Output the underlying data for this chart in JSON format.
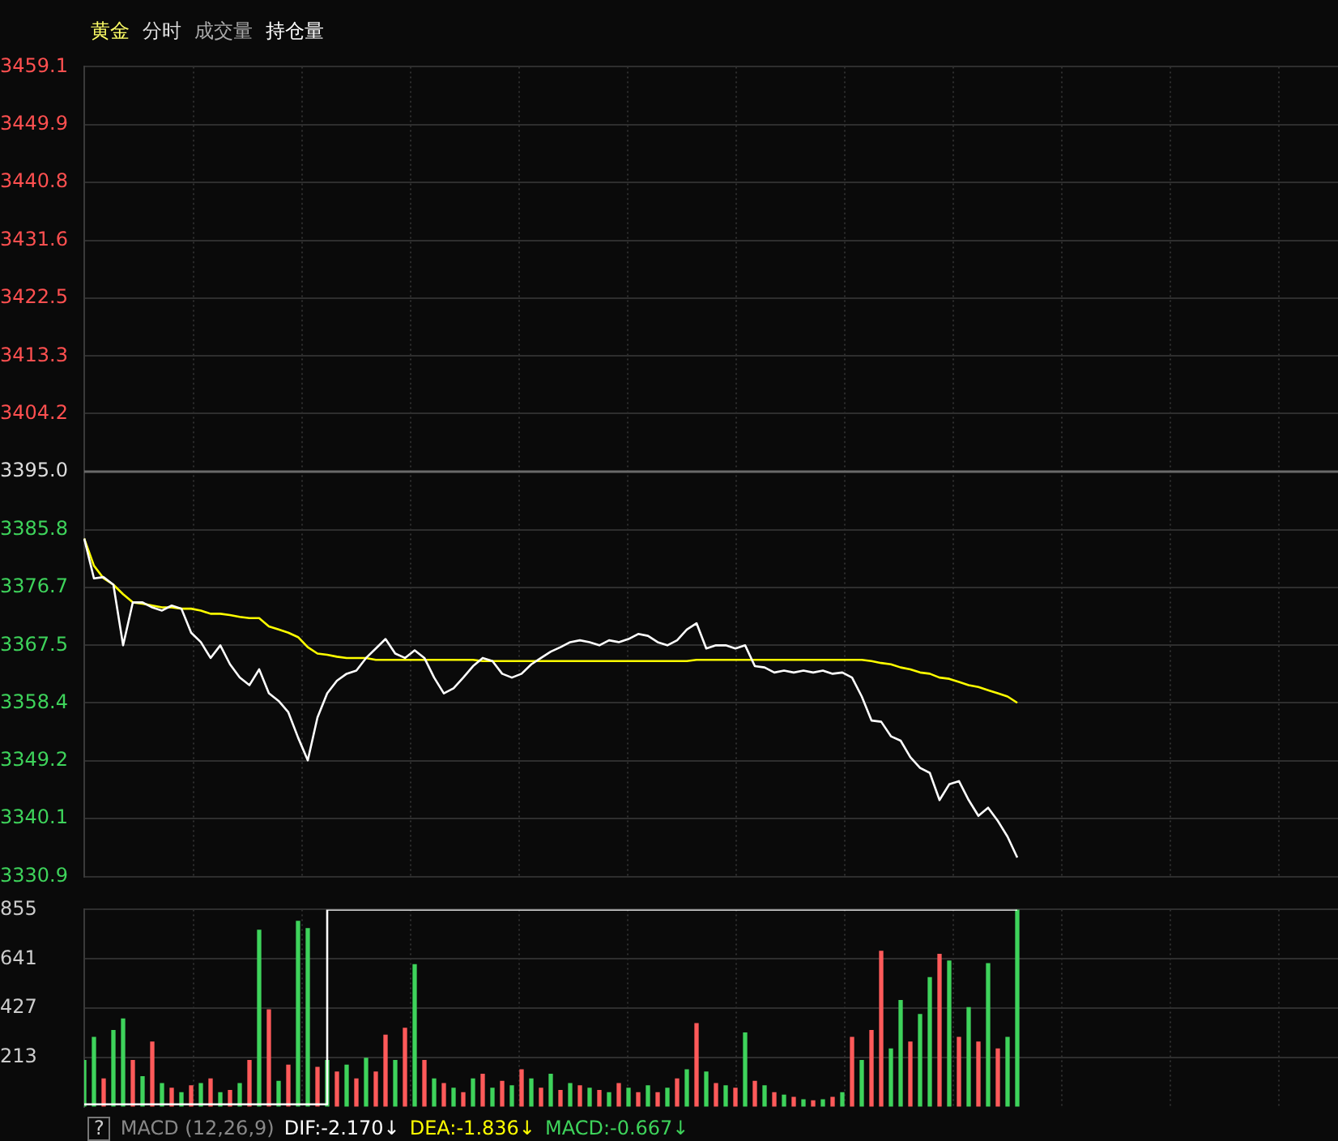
{
  "chart_data": [
    {
      "type": "line",
      "title": "黄金",
      "annotations": [
        "分时",
        "成交量",
        "持仓量"
      ],
      "categories": [
        null,
        null,
        null,
        null,
        null,
        null,
        null,
        null,
        null,
        null,
        null,
        null,
        null,
        null,
        null,
        null,
        null,
        null,
        null,
        null,
        null,
        null,
        null,
        null,
        null,
        null,
        null,
        null,
        null,
        null,
        null,
        null,
        null,
        null,
        null,
        null,
        null,
        null,
        null,
        null,
        null,
        null,
        null,
        null,
        null,
        null,
        null,
        null,
        null,
        null,
        null,
        null,
        null,
        null,
        null,
        null,
        null,
        null,
        null,
        null,
        null,
        null,
        null,
        null,
        null,
        null,
        null,
        null,
        null,
        null,
        null,
        null,
        null,
        null,
        null,
        null,
        null,
        null,
        null,
        null,
        null,
        null,
        null,
        null,
        null,
        null,
        null,
        null,
        null,
        null,
        null,
        null,
        null,
        null,
        null,
        null,
        null,
        null,
        null,
        null,
        null,
        null,
        null,
        null,
        null,
        null,
        null,
        null,
        null,
        null,
        null,
        null,
        null,
        null,
        null,
        null,
        null,
        null,
        null,
        null,
        null,
        null,
        null,
        null,
        null,
        null,
        null,
        null,
        null,
        null
      ],
      "series": [
        {
          "color": "#ffffff",
          "values": [
            3384.4,
            3378.1,
            3378.3,
            3377.1,
            3367.5,
            3374.3,
            3374.3,
            3373.5,
            3373.0,
            3373.8,
            3373.3,
            3369.5,
            3368.0,
            3365.5,
            3367.5,
            3364.5,
            3362.4,
            3361.2,
            3363.7,
            3359.9,
            3358.7,
            3356.9,
            3352.9,
            3349.3,
            3356.1,
            3359.9,
            3361.9,
            3363.0,
            3363.5,
            3365.5,
            3367.0,
            3368.5,
            3366.2,
            3365.5,
            3366.7,
            3365.5,
            3362.4,
            3359.9,
            3360.7,
            3362.4,
            3364.2,
            3365.5,
            3365.0,
            3363.0,
            3362.4,
            3363.0,
            3364.5,
            3365.5,
            3366.5,
            3367.2,
            3368.0,
            3368.3,
            3368.0,
            3367.5,
            3368.3,
            3368.0,
            3368.5,
            3369.3,
            3369.0,
            3368.0,
            3367.5,
            3368.3,
            3370.0,
            3371.0,
            3367.0,
            3367.5,
            3367.5,
            3367.0,
            3367.5,
            3364.2,
            3364.0,
            3363.2,
            3363.5,
            3363.2,
            3363.5,
            3363.2,
            3363.5,
            3363.0,
            3363.2,
            3362.4,
            3359.4,
            3355.6,
            3355.4,
            3353.1,
            3352.4,
            3349.8,
            3348.1,
            3347.3,
            3343.0,
            3345.5,
            3346.0,
            3343.0,
            3340.5,
            3341.8,
            3339.7,
            3337.2,
            3333.9,
            null,
            null,
            null,
            null,
            null,
            null,
            null,
            null,
            null,
            null,
            null,
            null,
            null,
            null,
            null,
            null,
            null,
            null,
            null,
            null,
            null,
            null,
            null,
            null,
            null,
            null,
            null,
            null,
            null,
            null,
            null,
            null,
            null
          ]
        },
        {
          "color": "#ffff00",
          "values": [
            3384.4,
            3380.1,
            3378.1,
            3377.1,
            3375.6,
            3374.3,
            3374.1,
            3373.8,
            3373.5,
            3373.5,
            3373.3,
            3373.3,
            3373.0,
            3372.5,
            3372.5,
            3372.3,
            3372.0,
            3371.8,
            3371.8,
            3370.5,
            3370.0,
            3369.5,
            3368.8,
            3367.2,
            3366.2,
            3366.0,
            3365.7,
            3365.5,
            3365.5,
            3365.5,
            3365.2,
            3365.2,
            3365.2,
            3365.2,
            3365.2,
            3365.2,
            3365.2,
            3365.2,
            3365.2,
            3365.2,
            3365.2,
            3365.0,
            3365.0,
            3365.0,
            3365.0,
            3365.0,
            3365.0,
            3365.0,
            3365.0,
            3365.0,
            3365.0,
            3365.0,
            3365.0,
            3365.0,
            3365.0,
            3365.0,
            3365.0,
            3365.0,
            3365.0,
            3365.0,
            3365.0,
            3365.0,
            3365.0,
            3365.2,
            3365.2,
            3365.2,
            3365.2,
            3365.2,
            3365.2,
            3365.2,
            3365.2,
            3365.2,
            3365.2,
            3365.2,
            3365.2,
            3365.2,
            3365.2,
            3365.2,
            3365.2,
            3365.2,
            3365.2,
            3365.0,
            3364.7,
            3364.5,
            3364.0,
            3363.7,
            3363.2,
            3363.0,
            3362.4,
            3362.2,
            3361.7,
            3361.2,
            3360.9,
            3360.4,
            3359.9,
            3359.4,
            3358.4,
            null,
            null,
            null,
            null,
            null,
            null,
            null,
            null,
            null,
            null,
            null,
            null,
            null,
            null,
            null,
            null,
            null,
            null,
            null,
            null,
            null,
            null,
            null,
            null,
            null,
            null,
            null,
            null,
            null,
            null,
            null,
            null,
            null
          ]
        }
      ],
      "ylim": [
        3330.9,
        3459.1
      ],
      "yticks": [
        3330.9,
        3340.1,
        3349.2,
        3358.4,
        3367.5,
        3376.7,
        3385.8,
        {
          "value": 3395.0,
          "label": "3395.0"
        },
        3404.2,
        3413.3,
        3422.5,
        3431.6,
        3440.8,
        3449.9,
        3459.1
      ],
      "grid": true,
      "tick_labels": "y",
      "ref_lines": [
        {
          "axis": "y",
          "value": 3395.0,
          "color": "#6a6a6a"
        }
      ]
    },
    {
      "type": "bar",
      "annotations": [
        "?",
        "MACD (12,26,9)",
        "DIF:-2.170↓",
        "DEA:-1.836↓",
        "MACD:-0.667↓"
      ],
      "categories": [
        null,
        null,
        null,
        null,
        null,
        null,
        null,
        null,
        null,
        null,
        null,
        null,
        null,
        null,
        null,
        null,
        null,
        null,
        null,
        null,
        null,
        null,
        null,
        null,
        null,
        null,
        null,
        null,
        null,
        null,
        null,
        null,
        null,
        null,
        null,
        null,
        null,
        null,
        null,
        null,
        null,
        null,
        null,
        null,
        null,
        null,
        null,
        null,
        null,
        null,
        null,
        null,
        null,
        null,
        null,
        null,
        null,
        null,
        null,
        null,
        null,
        null,
        null,
        null,
        null,
        null,
        null,
        null,
        null,
        null,
        null,
        null,
        null,
        null,
        null,
        null,
        null,
        null,
        null,
        null,
        null,
        null,
        null,
        null,
        null,
        null,
        null,
        null,
        null,
        null,
        null,
        null,
        null,
        null,
        null,
        null,
        null,
        null,
        null,
        null,
        null,
        null,
        null,
        null,
        null,
        null,
        null,
        null,
        null,
        null,
        null,
        null,
        null,
        null,
        null,
        null,
        null,
        null,
        null,
        null,
        null,
        null,
        null,
        null,
        null,
        null,
        null,
        null,
        null,
        null
      ],
      "series": [
        {
          "type": "bar",
          "values": [
            200,
            300,
            120,
            330,
            380,
            200,
            130,
            280,
            100,
            80,
            60,
            90,
            100,
            120,
            60,
            70,
            100,
            200,
            765,
            420,
            110,
            180,
            804,
            772,
            170,
            200,
            150,
            180,
            120,
            210,
            150,
            310,
            200,
            340,
            616,
            200,
            120,
            100,
            80,
            60,
            120,
            140,
            80,
            110,
            90,
            160,
            120,
            80,
            140,
            70,
            100,
            90,
            80,
            70,
            60,
            100,
            80,
            60,
            90,
            60,
            80,
            120,
            160,
            360,
            150,
            100,
            90,
            80,
            320,
            110,
            90,
            60,
            50,
            40,
            30,
            25,
            30,
            40,
            60,
            300,
            200,
            330,
            674,
            250,
            460,
            280,
            400,
            560,
            661,
            632,
            300,
            430,
            280,
            620,
            250,
            300,
            855,
            null,
            null,
            null,
            null,
            null,
            null,
            null,
            null,
            null,
            null,
            null,
            null,
            null,
            null,
            null,
            null,
            null,
            null,
            null,
            null,
            null,
            null,
            null,
            null,
            null,
            null,
            null,
            null,
            null,
            null,
            null,
            null,
            null
          ],
          "colors": [
            "#3ed35b",
            "#3ed35b",
            "#ff5a5a",
            "#3ed35b",
            "#3ed35b",
            "#ff5a5a",
            "#3ed35b",
            "#ff5a5a",
            "#3ed35b",
            "#ff5a5a",
            "#3ed35b",
            "#ff5a5a",
            "#3ed35b",
            "#ff5a5a",
            "#3ed35b",
            "#ff5a5a",
            "#3ed35b",
            "#ff5a5a",
            "#3ed35b",
            "#ff5a5a",
            "#3ed35b",
            "#ff5a5a",
            "#3ed35b",
            "#3ed35b",
            "#ff5a5a",
            "#3ed35b",
            "#ff5a5a",
            "#3ed35b",
            "#ff5a5a",
            "#3ed35b",
            "#ff5a5a",
            "#ff5a5a",
            "#3ed35b",
            "#ff5a5a",
            "#3ed35b",
            "#ff5a5a",
            "#3ed35b",
            "#ff5a5a",
            "#3ed35b",
            "#ff5a5a",
            "#3ed35b",
            "#ff5a5a",
            "#3ed35b",
            "#ff5a5a",
            "#3ed35b",
            "#ff5a5a",
            "#3ed35b",
            "#ff5a5a",
            "#3ed35b",
            "#ff5a5a",
            "#3ed35b",
            "#ff5a5a",
            "#3ed35b",
            "#ff5a5a",
            "#3ed35b",
            "#ff5a5a",
            "#3ed35b",
            "#ff5a5a",
            "#3ed35b",
            "#ff5a5a",
            "#3ed35b",
            "#ff5a5a",
            "#3ed35b",
            "#ff5a5a",
            "#3ed35b",
            "#ff5a5a",
            "#3ed35b",
            "#ff5a5a",
            "#3ed35b",
            "#ff5a5a",
            "#3ed35b",
            "#ff5a5a",
            "#3ed35b",
            "#ff5a5a",
            "#3ed35b",
            "#ff5a5a",
            "#3ed35b",
            "#ff5a5a",
            "#3ed35b",
            "#ff5a5a",
            "#3ed35b",
            "#ff5a5a",
            "#ff5a5a",
            "#3ed35b",
            "#3ed35b",
            "#ff5a5a",
            "#3ed35b",
            "#3ed35b",
            "#ff5a5a",
            "#3ed35b",
            "#ff5a5a",
            "#3ed35b",
            "#ff5a5a",
            "#3ed35b",
            "#ff5a5a",
            "#3ed35b",
            "#3ed35b",
            "#3ed35b",
            "#3ed35b",
            "#3ed35b",
            "#3ed35b",
            "#3ed35b",
            "#3ed35b",
            "#3ed35b",
            "#3ed35b",
            "#3ed35b",
            "#3ed35b",
            "#3ed35b",
            "#3ed35b",
            "#3ed35b",
            "#3ed35b",
            "#3ed35b",
            "#3ed35b",
            "#3ed35b",
            "#3ed35b",
            "#3ed35b",
            "#3ed35b",
            "#3ed35b",
            "#3ed35b",
            "#3ed35b",
            "#3ed35b",
            "#3ed35b",
            "#3ed35b",
            "#3ed35b",
            "#3ed35b",
            "#3ed35b",
            "#3ed35b",
            "#3ed35b",
            "#3ed35b",
            "#3ed35b"
          ]
        },
        {
          "type": "step",
          "color": "#ffffff",
          "values": [
            10,
            10,
            10,
            10,
            10,
            10,
            10,
            10,
            10,
            10,
            10,
            10,
            10,
            10,
            10,
            10,
            10,
            10,
            10,
            10,
            10,
            10,
            10,
            10,
            10,
            855,
            855,
            855,
            855,
            855,
            855,
            855,
            855,
            855,
            855,
            855,
            855,
            855,
            855,
            855,
            855,
            855,
            855,
            855,
            855,
            855,
            855,
            855,
            855,
            855,
            855,
            855,
            855,
            855,
            855,
            855,
            855,
            855,
            855,
            855,
            855,
            855,
            855,
            855,
            855,
            855,
            855,
            855,
            855,
            855,
            855,
            855,
            855,
            855,
            855,
            855,
            855,
            855,
            855,
            855,
            855,
            855,
            855,
            855,
            855,
            855,
            855,
            855,
            855,
            855,
            855,
            855,
            855,
            855,
            855,
            855,
            855,
            null,
            null,
            null,
            null,
            null,
            null,
            null,
            null,
            null,
            null,
            null,
            null,
            null,
            null,
            null,
            null,
            null,
            null,
            null,
            null,
            null,
            null,
            null,
            null,
            null,
            null,
            null,
            null,
            null,
            null,
            null,
            null,
            null
          ]
        }
      ],
      "ylim": [
        0,
        855
      ],
      "yticks": [
        213,
        427,
        641,
        855
      ],
      "grid": true,
      "tick_labels": "y"
    }
  ]
}
